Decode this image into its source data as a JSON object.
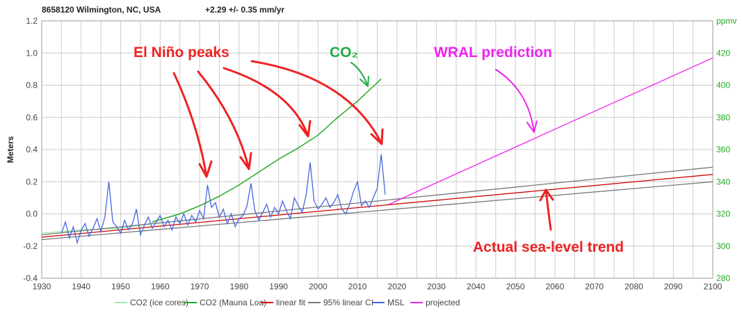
{
  "header": {
    "station": "8658120 Wilmington, NC, USA",
    "rate": "+2.29 +/- 0.35 mm/yr"
  },
  "chart_data": {
    "type": "line",
    "ylabel": "Meters",
    "y2label": "ppmv",
    "xlim": [
      1930,
      2100
    ],
    "ylim": [
      -0.4,
      1.2
    ],
    "y2lim": [
      280,
      440
    ],
    "grid": true,
    "legend_position": "bottom",
    "xticks": [
      "1930",
      "1940",
      "1950",
      "1960",
      "1970",
      "1980",
      "1990",
      "2000",
      "2010",
      "2020",
      "2030",
      "2040",
      "2050",
      "2060",
      "2070",
      "2080",
      "2090",
      "2100"
    ],
    "yticks": [
      "1.2",
      "1.0",
      "0.8",
      "0.6",
      "0.4",
      "0.2",
      "0.0",
      "-0.2",
      "-0.4"
    ],
    "y2ticks": [
      "420",
      "400",
      "380",
      "360",
      "340",
      "320",
      "300",
      "280"
    ],
    "colors": {
      "ice": "#a6e8a6",
      "mauna": "#22aa22",
      "fit": "#cc0000",
      "ci": "#777777",
      "msl": "#4466dd",
      "proj": "#ee22ee"
    },
    "series": [
      {
        "name": "CO2 (ice cores)",
        "axis": "right",
        "x": [
          1930,
          1940,
          1950,
          1958
        ],
        "y": [
          308,
          310,
          311,
          314
        ]
      },
      {
        "name": "CO2 (Mauna Loa)",
        "axis": "right",
        "x": [
          1958,
          1965,
          1970,
          1975,
          1980,
          1985,
          1990,
          1995,
          2000,
          2005,
          2010,
          2016
        ],
        "y": [
          315,
          320,
          325,
          331,
          338,
          346,
          354,
          361,
          369,
          380,
          390,
          404
        ]
      },
      {
        "name": "linear fit",
        "axis": "left",
        "x": [
          1930,
          2100
        ],
        "y": [
          -0.145,
          0.245
        ]
      },
      {
        "name": "95% linear CI",
        "axis": "left",
        "x": [
          1930,
          2100
        ],
        "y": [
          -0.16,
          0.2
        ],
        "y_upper": [
          -0.13,
          0.29
        ]
      },
      {
        "name": "MSL",
        "axis": "left",
        "x_start": 1935,
        "x_step": 1,
        "y": [
          -0.12,
          -0.05,
          -0.15,
          -0.08,
          -0.18,
          -0.1,
          -0.06,
          -0.14,
          -0.09,
          -0.03,
          -0.11,
          -0.02,
          0.2,
          -0.05,
          -0.08,
          -0.12,
          -0.04,
          -0.1,
          -0.06,
          0.03,
          -0.13,
          -0.07,
          -0.02,
          -0.09,
          -0.05,
          -0.01,
          -0.08,
          -0.04,
          -0.1,
          -0.02,
          -0.06,
          0.0,
          -0.07,
          -0.01,
          -0.05,
          0.02,
          -0.03,
          0.18,
          0.04,
          0.07,
          -0.02,
          0.03,
          -0.06,
          0.0,
          -0.08,
          -0.03,
          -0.01,
          0.05,
          0.19,
          0.02,
          -0.04,
          0.01,
          0.06,
          -0.02,
          0.04,
          0.0,
          0.08,
          0.02,
          -0.03,
          0.1,
          0.05,
          0.01,
          0.12,
          0.32,
          0.08,
          0.03,
          0.06,
          0.1,
          0.04,
          0.07,
          0.12,
          0.03,
          0.0,
          0.06,
          0.14,
          0.2,
          0.05,
          0.08,
          0.04,
          0.1,
          0.16,
          0.37,
          0.12
        ]
      },
      {
        "name": "projected",
        "axis": "left",
        "x": [
          2018,
          2100
        ],
        "y": [
          0.06,
          0.97
        ]
      }
    ],
    "annotations": [
      {
        "text": "El Niño peaks",
        "color": "#ee2222"
      },
      {
        "text": "CO₂",
        "color": "#22aa44"
      },
      {
        "text": "WRAL prediction",
        "color": "#ee22ee"
      },
      {
        "text": "Actual sea-level trend",
        "color": "#ee2222"
      }
    ]
  }
}
